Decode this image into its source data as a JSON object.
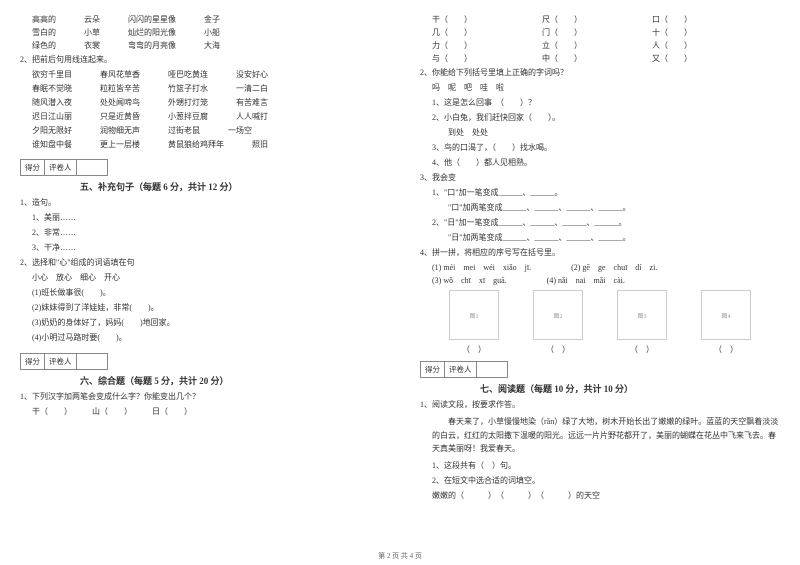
{
  "left": {
    "triples": [
      [
        "高高的",
        "云朵",
        "闪闪的星星像",
        "金子"
      ],
      [
        "雪白的",
        "小草",
        "灿烂的阳光像",
        "小船"
      ],
      [
        "绿色的",
        "衣裳",
        "弯弯的月亮像",
        "大海"
      ]
    ],
    "q2": "2、把前后句用线连起来。",
    "pairs": [
      [
        "欲穷千里目",
        "春风花草香",
        "哑巴吃黄连",
        "没安好心"
      ],
      [
        "春眠不觉晓",
        "粒粒皆辛苦",
        "竹篮子打水",
        "一清二白"
      ],
      [
        "随风潜入夜",
        "处处闻啼鸟",
        "外甥打灯笼",
        "有苦难言"
      ],
      [
        "迟日江山丽",
        "只是近黄昏",
        "小葱拌豆腐",
        "人人喊打"
      ],
      [
        "夕阳无限好",
        "润物细无声",
        "过街老鼠",
        "一场空"
      ],
      [
        "谁知盘中餐",
        "更上一层楼",
        "黄鼠狼给鸡拜年",
        "照旧"
      ]
    ],
    "scoreLabels": [
      "得分",
      "评卷人"
    ],
    "sec5": "五、补充句子（每题 6 分，共计 12 分）",
    "q5_1": "1、造句。",
    "q5_1_items": [
      "1、美丽……",
      "2、非常……",
      "3、干净……"
    ],
    "q5_2": "2、选择和\"心\"组成的词语填在句",
    "q5_2_sub": "小心　放心　细心　开心",
    "q5_2_items": [
      "(1)班长做事很(　　)。",
      "(2)妹妹得到了洋娃娃，非常(　　)。",
      "(3)奶奶的身体好了，妈妈(　　)地回家。",
      "(4)小明过马路时要(　　)。"
    ],
    "sec6": "六、综合题（每题 5 分，共计 20 分）",
    "q6_1": "1、下列汉字加两笔会变成什么字？你能变出几个？",
    "q6_1_items": [
      "干（　　）",
      "山（　　）",
      "日（　　）"
    ]
  },
  "right": {
    "char_lines": [
      [
        "干（　　）",
        "尺（　　）",
        "口（　　）"
      ],
      [
        "几（　　）",
        "门（　　）",
        "十（　　）"
      ],
      [
        "力（　　）",
        "立（　　）",
        "人（　　）"
      ],
      [
        "与（　　）",
        "中（　　）",
        "又（　　）"
      ]
    ],
    "q2": "2、你能给下列括号里填上正确的字词吗？",
    "q2_items": [
      "1、这是怎么回事　（　　）？",
      "2、小白兔，我们赶快回家（　　）。",
      "　　到处　处处",
      "3、鸟的口渴了，（　　）找水喝。",
      "4、他（　　）都人见相熟。"
    ],
    "q2_sub": "吗　呢　吧　哇　啦",
    "q3": "3、我会变",
    "q3_items": [
      "1、\"口\"加一笔变成______、______。",
      "　　\"口\"加两笔变成______、______、______、______。",
      "2、\"日\"加一笔变成______、______、______、______。",
      "　　\"日\"加两笔变成______、______、______、______。"
    ],
    "q4": "4、拼一拼，将相应的序号写在括号里。",
    "q4_p": [
      [
        "(1) méi　mei　wéi　xiǎo　jī.",
        "(2) gē　ge　chuī　dí　zi."
      ],
      [
        "(3) wǒ　chī　xī　guā.",
        "(4) nǎi　nai　mǎi　cài."
      ]
    ],
    "img_labels": [
      "（　）",
      "（　）",
      "（　）",
      "（　）"
    ],
    "scoreLabels": [
      "得分",
      "评卷人"
    ],
    "sec7": "七、阅读题（每题 10 分，共计 10 分）",
    "q7_1": "1、阅读文段，按要求作答。",
    "passage": "　　春天来了，小草慢慢地染（rǎn）绿了大地，树木开始长出了嫩嫩的绿叶。蓝蓝的天空飘着淡淡的白云，红红的太阳撒下温暖的阳光。远远一片片野花都开了，美丽的蝴蝶在花丛中飞来飞去。春天真美丽呀！我爱春天。",
    "q7_sub1": "1、这段共有（　）句。",
    "q7_sub2": "2、在短文中选合适的词填空。",
    "q7_blanks": "嫩嫩的（　　　）　（　　　）　（　　　）的天空"
  },
  "footer": "第 2 页 共 4 页"
}
